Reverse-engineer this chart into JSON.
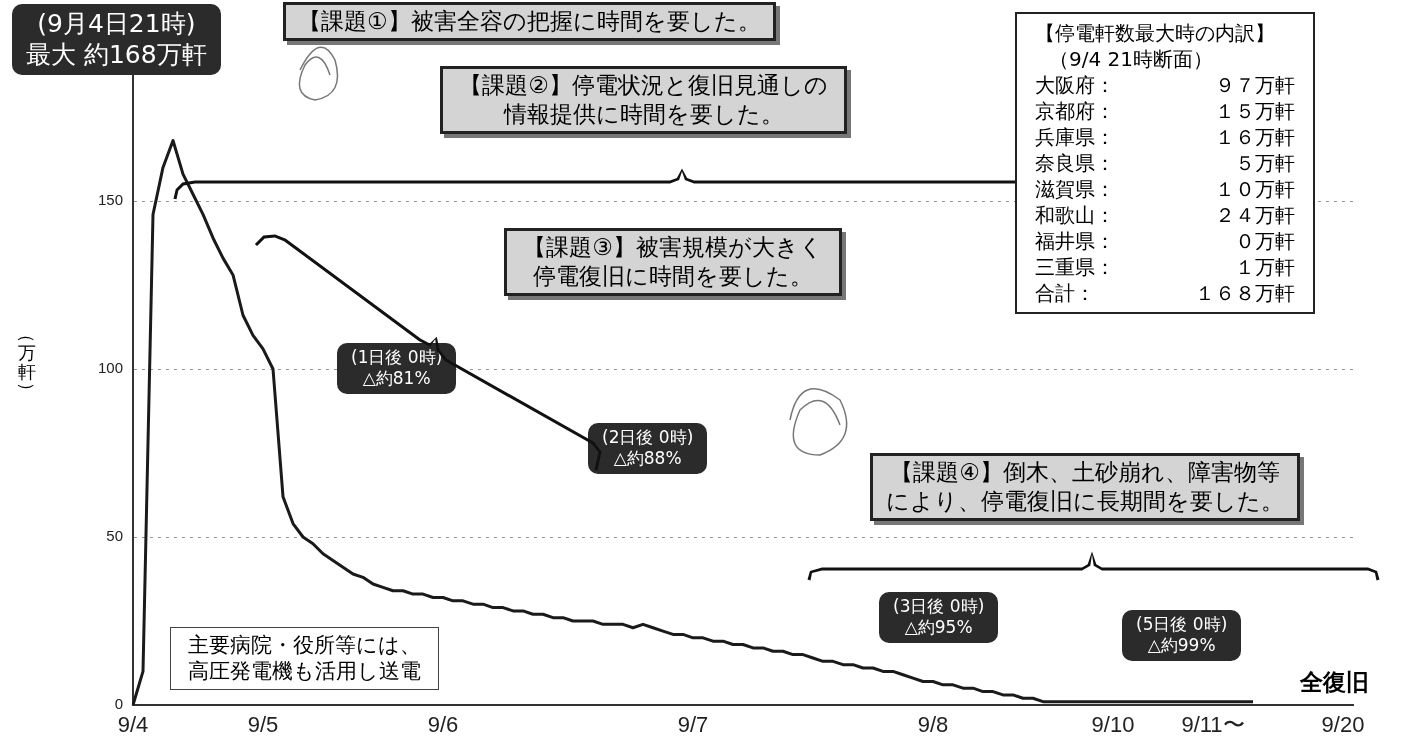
{
  "chart_data": {
    "type": "line",
    "ylabel": "（万軒）",
    "categories": [
      "9/4",
      null,
      null,
      null,
      null,
      null,
      null,
      null,
      null,
      null,
      null,
      null,
      null,
      "9/5",
      null,
      null,
      null,
      null,
      null,
      null,
      null,
      null,
      null,
      null,
      null,
      null,
      null,
      null,
      null,
      null,
      null,
      "9/6",
      null,
      null,
      null,
      null,
      null,
      null,
      null,
      null,
      null,
      null,
      null,
      null,
      null,
      null,
      null,
      null,
      null,
      null,
      null,
      null,
      null,
      null,
      null,
      null,
      "9/7",
      null,
      null,
      null,
      null,
      null,
      null,
      null,
      null,
      null,
      null,
      null,
      null,
      null,
      null,
      null,
      null,
      null,
      null,
      null,
      null,
      null,
      null,
      null,
      "9/8",
      null,
      null,
      null,
      null,
      null,
      null,
      null,
      null,
      null,
      null,
      null,
      null,
      null,
      null,
      null,
      null,
      null,
      "9/10",
      null,
      null,
      null,
      null,
      null,
      null,
      null,
      null,
      null,
      "9/11〜",
      null,
      null,
      null,
      null,
      null,
      null,
      null,
      null,
      null,
      null,
      null,
      null,
      "9/20",
      null
    ],
    "values": [
      0,
      10,
      146,
      160,
      168,
      158,
      152,
      146,
      139,
      133,
      128,
      116,
      110,
      106,
      100,
      62,
      54,
      50,
      48,
      45,
      43,
      41,
      39,
      38,
      36,
      35,
      34,
      34,
      33,
      33,
      32,
      32,
      31,
      31,
      30,
      30,
      29,
      29,
      28,
      28,
      27,
      27,
      26,
      26,
      25,
      25,
      25,
      24,
      24,
      24,
      23,
      24,
      23,
      22,
      21,
      21,
      20,
      20,
      19,
      19,
      18,
      18,
      17,
      17,
      16,
      16,
      15,
      15,
      14,
      13,
      13,
      12,
      12,
      11,
      11,
      10,
      10,
      9,
      8,
      7,
      7,
      6,
      6,
      5,
      5,
      4,
      4,
      3,
      3,
      2,
      2,
      1,
      1,
      1,
      1,
      1,
      1,
      1,
      1,
      1,
      1,
      1,
      1,
      1,
      1,
      1,
      1,
      1,
      1,
      1,
      1,
      1,
      1,
      null,
      null,
      null,
      null,
      null,
      null,
      null,
      null,
      null,
      null
    ],
    "color": "#1a1a1a",
    "ylim": [
      0,
      200
    ],
    "yticks": [
      0,
      50,
      100,
      150
    ],
    "grid": "y",
    "legend": false,
    "marker": "none",
    "line_style": "solid",
    "annotations": [
      "(9月4日21時)\n最大 約168万軒",
      "【課題①】被害全容の把握に時間を要した。",
      "【課題②】停電状況と復旧見通しの情報提供に時間を要した。",
      "【課題③】被害規模が大きく停電復旧に時間を要した。",
      "【課題④】倒木、土砂崩れ、障害物等により、停電復旧に長期間を要した。",
      "(1日後 0時)\n△約81%",
      "(2日後 0時)\n△約88%",
      "(3日後 0時)\n△約95%",
      "(5日後 0時)\n△約99%",
      "主要病院・役所等には、高圧発電機も活用し送電",
      "全復旧",
      "【停電軒数最大時の内訳】",
      "（9/4 21時断面）",
      "大阪府：９７万軒",
      "京都府：１５万軒",
      "兵庫県：１６万軒",
      "奈良県：５万軒",
      "滋賀県：１０万軒",
      "和歌山：２４万軒",
      "福井県：０万軒",
      "三重県：１万軒",
      "合計：１６８万軒"
    ]
  }
}
